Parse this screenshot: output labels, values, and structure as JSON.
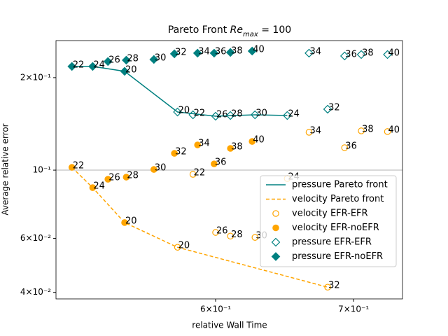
{
  "chart_data": {
    "type": "scatter",
    "title": [
      "Pareto Front",
      "Re",
      "max",
      "= 100"
    ],
    "x_label": "relative Wall Time",
    "y_label": "Average relative error",
    "log_x": true,
    "log_y": true,
    "xlim": [
      0.502,
      0.7393
    ],
    "ylim": [
      0.0381,
      0.264
    ],
    "xticks": [
      {
        "value": 0.6,
        "label": "6×10⁻¹"
      },
      {
        "value": 0.7,
        "label": "7×10⁻¹"
      }
    ],
    "yticks": [
      {
        "value": 0.04,
        "label": "4×10⁻²"
      },
      {
        "value": 0.06,
        "label": "6×10⁻²"
      },
      {
        "value": 0.1,
        "label": "10⁻¹"
      },
      {
        "value": 0.2,
        "label": "2×10⁻¹"
      }
    ],
    "hline": 0.1,
    "legend": "lower right",
    "series": [
      {
        "name": "pressure Pareto front",
        "kind": "line",
        "dashed": false,
        "color": "#008080",
        "x": [
          0.511,
          0.523,
          0.542,
          0.575,
          0.6,
          0.627,
          0.65
        ],
        "values": [
          0.2175,
          0.2175,
          0.2097,
          0.1546,
          0.1498,
          0.1514,
          0.1506
        ]
      },
      {
        "name": "velocity Pareto front",
        "kind": "line",
        "dashed": true,
        "color": "#ffa500",
        "x": [
          0.511,
          0.523,
          0.542,
          0.575,
          0.68
        ],
        "values": [
          0.1021,
          0.0877,
          0.0675,
          0.0561,
          0.0416
        ]
      },
      {
        "name": "velocity EFR-EFR",
        "kind": "scatter",
        "marker": "circle",
        "filled": false,
        "color": "#ffa500",
        "x": [
          0.575,
          0.585,
          0.6,
          0.61,
          0.627,
          0.65,
          0.666,
          0.68,
          0.693,
          0.706,
          0.727
        ],
        "values": [
          0.0561,
          0.0969,
          0.0627,
          0.061,
          0.0604,
          0.0939,
          0.1328,
          0.0416,
          0.1183,
          0.1342,
          0.1335
        ],
        "labels": [
          20,
          22,
          26,
          28,
          30,
          24,
          34,
          32,
          36,
          38,
          40
        ]
      },
      {
        "name": "velocity EFR-noEFR",
        "kind": "scatter",
        "marker": "circle",
        "filled": true,
        "color": "#ffa500",
        "x": [
          0.511,
          0.523,
          0.532,
          0.543,
          0.542,
          0.56,
          0.573,
          0.588,
          0.599,
          0.61,
          0.625
        ],
        "values": [
          0.1021,
          0.0877,
          0.0934,
          0.0949,
          0.0675,
          0.1005,
          0.1134,
          0.1208,
          0.1048,
          0.1177,
          0.124
        ],
        "labels": [
          22,
          24,
          26,
          28,
          20,
          30,
          32,
          34,
          36,
          38,
          40
        ]
      },
      {
        "name": "pressure EFR-EFR",
        "kind": "scatter",
        "marker": "diamond",
        "filled": false,
        "color": "#008080",
        "x": [
          0.575,
          0.585,
          0.6,
          0.61,
          0.627,
          0.65,
          0.666,
          0.68,
          0.693,
          0.706,
          0.727
        ],
        "values": [
          0.1546,
          0.1514,
          0.1498,
          0.1506,
          0.1514,
          0.1506,
          0.2403,
          0.1579,
          0.2353,
          0.2378,
          0.2378
        ],
        "labels": [
          20,
          22,
          26,
          28,
          30,
          24,
          34,
          32,
          36,
          38,
          40
        ]
      },
      {
        "name": "pressure EFR-noEFR",
        "kind": "scatter",
        "marker": "diamond",
        "filled": true,
        "color": "#008080",
        "x": [
          0.511,
          0.523,
          0.532,
          0.543,
          0.542,
          0.56,
          0.573,
          0.588,
          0.599,
          0.61,
          0.625
        ],
        "values": [
          0.2175,
          0.2175,
          0.2257,
          0.228,
          0.2097,
          0.2292,
          0.2391,
          0.2403,
          0.2403,
          0.2416,
          0.2441
        ],
        "labels": [
          22,
          24,
          26,
          28,
          20,
          30,
          32,
          34,
          36,
          38,
          40
        ]
      }
    ]
  }
}
